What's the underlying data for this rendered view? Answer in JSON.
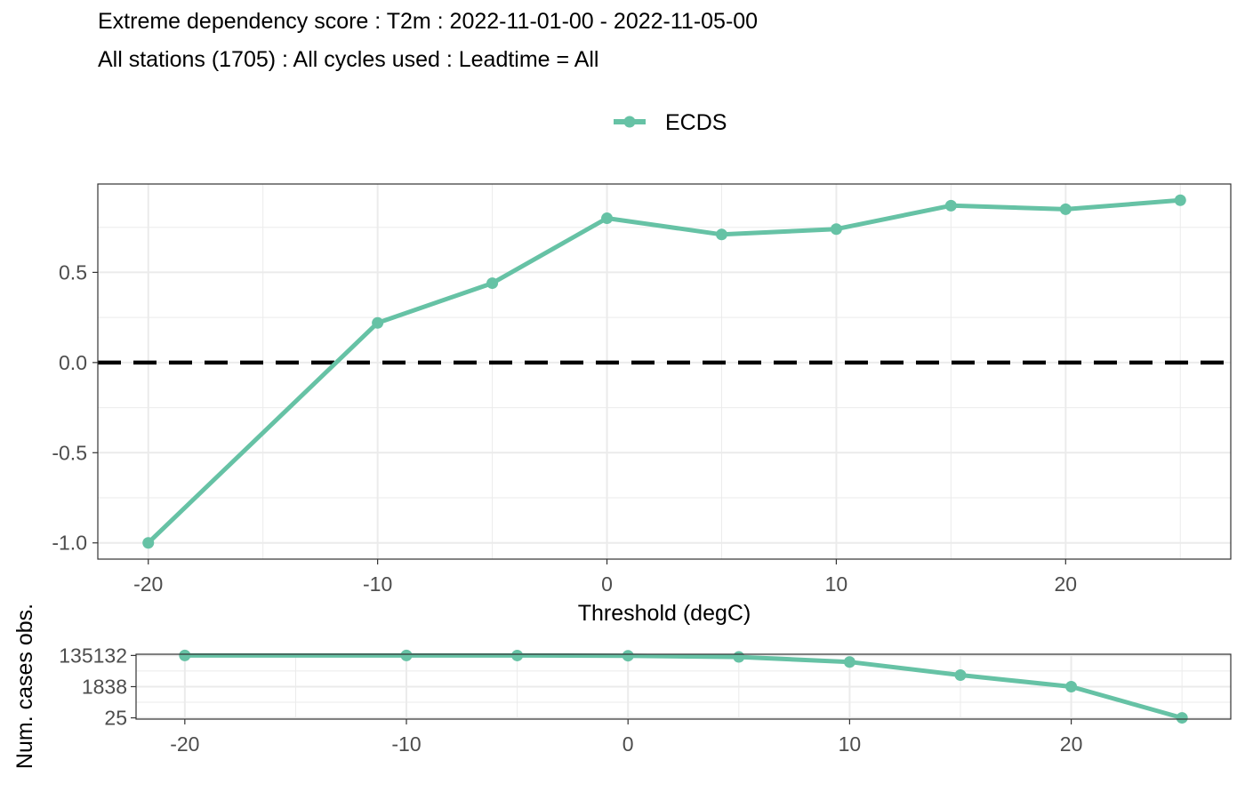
{
  "title": "Extreme dependency score : T2m : 2022-11-01-00 - 2022-11-05-00",
  "subtitle": "All stations (1705) : All cycles used : Leadtime = All",
  "colors": {
    "series": "#66c2a5",
    "reference_line": "#000000",
    "grid": "#ebebeb",
    "panel_border": "#333333",
    "tick_text": "#4d4d4d"
  },
  "chart_data": [
    {
      "type": "line",
      "legend": {
        "placement": "top-center",
        "entries": [
          "ECDS"
        ]
      },
      "xlabel": "Threshold (degC)",
      "ylabel": "",
      "xlim": [
        -22.2,
        27.2
      ],
      "ylim": [
        -1.09,
        0.99
      ],
      "x_ticks": [
        -20,
        -10,
        0,
        10,
        20
      ],
      "x_tick_labels": [
        "-20",
        "-10",
        "0",
        "10",
        "20"
      ],
      "y_ticks": [
        -1.0,
        -0.5,
        0.0,
        0.5
      ],
      "y_tick_labels": [
        "-1.0",
        "-0.5",
        "0.0",
        "0.5"
      ],
      "grid": true,
      "reference_line_y": 0,
      "series": [
        {
          "name": "ECDS",
          "x": [
            -20,
            -10,
            -5,
            0,
            5,
            10,
            15,
            20,
            25
          ],
          "y": [
            -1.0,
            0.22,
            0.44,
            0.8,
            0.71,
            0.74,
            0.87,
            0.85,
            0.9
          ]
        }
      ]
    },
    {
      "type": "line",
      "xlabel": "",
      "ylabel": "Num. cases obs.",
      "scale_y": "log",
      "xlim": [
        -22.2,
        27.2
      ],
      "ylim": [
        21,
        160000
      ],
      "x_ticks": [
        -20,
        -10,
        0,
        10,
        20
      ],
      "x_tick_labels": [
        "-20",
        "-10",
        "0",
        "10",
        "20"
      ],
      "y_ticks": [
        135132,
        1838,
        25
      ],
      "y_tick_labels": [
        "135132",
        "1838",
        "25"
      ],
      "grid": true,
      "series": [
        {
          "x": [
            -20,
            -10,
            -5,
            0,
            5,
            10,
            15,
            20,
            25
          ],
          "y": [
            135132,
            135000,
            134000,
            130000,
            110000,
            55000,
            9000,
            1838,
            25
          ]
        }
      ]
    }
  ]
}
